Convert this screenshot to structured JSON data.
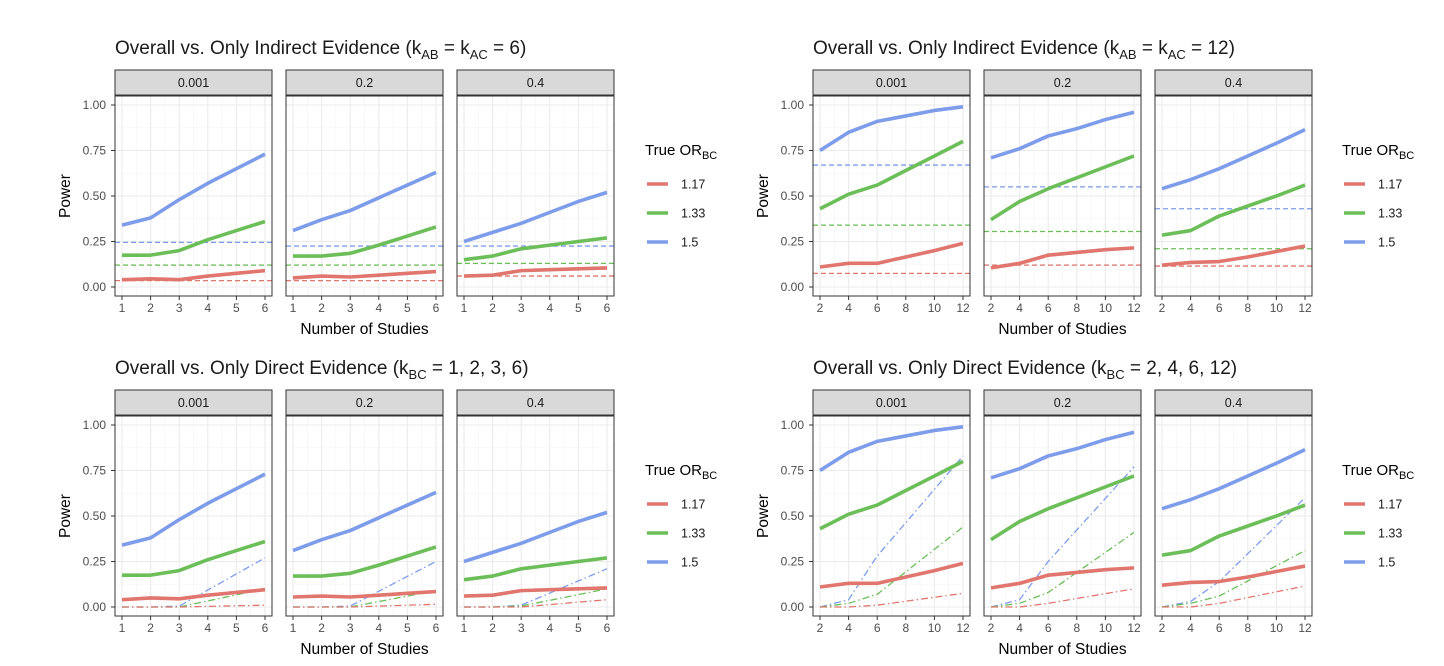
{
  "colors": {
    "s117": "#E0766D",
    "s133": "#6BBE58",
    "s15": "#7D9DEB",
    "strip_bg": "#D9D9D9",
    "grid": "#EBEBEB",
    "panel_border": "#333333"
  },
  "legend": {
    "title_main": "True OR",
    "title_sub": "BC",
    "entries": [
      "1.17",
      "1.33",
      "1.5"
    ]
  },
  "chart_data": [
    {
      "type": "line",
      "title": {
        "pre": "Overall vs. Only Indirect Evidence (k",
        "sub1": "AB",
        "mid": " = k",
        "sub2": "AC",
        "post": " = 6)"
      },
      "xlabel": "Number of Studies",
      "ylabel": "Power",
      "xlim": [
        1,
        6
      ],
      "ylim": [
        0,
        1
      ],
      "xticks": [
        "1",
        "2",
        "3",
        "4",
        "5",
        "6"
      ],
      "yticks": [
        "0.00",
        "0.25",
        "0.50",
        "0.75",
        "1.00"
      ],
      "x": [
        1,
        2,
        3,
        4,
        5,
        6
      ],
      "reference_style": "dashed",
      "facets": [
        {
          "label": "0.001",
          "series": [
            {
              "name": "1.5",
              "values": [
                0.34,
                0.38,
                0.48,
                0.57,
                0.65,
                0.73
              ],
              "reference": 0.245
            },
            {
              "name": "1.33",
              "values": [
                0.175,
                0.175,
                0.2,
                0.26,
                0.31,
                0.36
              ],
              "reference": 0.12
            },
            {
              "name": "1.17",
              "values": [
                0.04,
                0.045,
                0.04,
                0.06,
                0.075,
                0.09
              ],
              "reference": 0.035
            }
          ]
        },
        {
          "label": "0.2",
          "series": [
            {
              "name": "1.5",
              "values": [
                0.31,
                0.37,
                0.42,
                0.49,
                0.56,
                0.63
              ],
              "reference": 0.225
            },
            {
              "name": "1.33",
              "values": [
                0.17,
                0.17,
                0.185,
                0.23,
                0.28,
                0.33
              ],
              "reference": 0.12
            },
            {
              "name": "1.17",
              "values": [
                0.05,
                0.06,
                0.055,
                0.065,
                0.075,
                0.085
              ],
              "reference": 0.035
            }
          ]
        },
        {
          "label": "0.4",
          "series": [
            {
              "name": "1.5",
              "values": [
                0.25,
                0.3,
                0.35,
                0.41,
                0.47,
                0.52
              ],
              "reference": 0.225
            },
            {
              "name": "1.33",
              "values": [
                0.15,
                0.17,
                0.21,
                0.23,
                0.25,
                0.27
              ],
              "reference": 0.13
            },
            {
              "name": "1.17",
              "values": [
                0.06,
                0.065,
                0.09,
                0.095,
                0.1,
                0.105
              ],
              "reference": 0.06
            }
          ]
        }
      ]
    },
    {
      "type": "line",
      "title": {
        "pre": "Overall vs. Only Indirect Evidence (k",
        "sub1": "AB",
        "mid": " = k",
        "sub2": "AC",
        "post": " = 12)"
      },
      "xlabel": "Number of Studies",
      "ylabel": "Power",
      "xlim": [
        2,
        12
      ],
      "ylim": [
        0,
        1
      ],
      "xticks": [
        "2",
        "4",
        "6",
        "8",
        "10",
        "12"
      ],
      "yticks": [
        "0.00",
        "0.25",
        "0.50",
        "0.75",
        "1.00"
      ],
      "x": [
        2,
        4,
        6,
        8,
        10,
        12
      ],
      "reference_style": "dashed",
      "facets": [
        {
          "label": "0.001",
          "series": [
            {
              "name": "1.5",
              "values": [
                0.75,
                0.85,
                0.91,
                0.94,
                0.97,
                0.99
              ],
              "reference": 0.67
            },
            {
              "name": "1.33",
              "values": [
                0.43,
                0.51,
                0.56,
                0.64,
                0.72,
                0.8
              ],
              "reference": 0.34
            },
            {
              "name": "1.17",
              "values": [
                0.11,
                0.13,
                0.13,
                0.165,
                0.2,
                0.24
              ],
              "reference": 0.075
            }
          ]
        },
        {
          "label": "0.2",
          "series": [
            {
              "name": "1.5",
              "values": [
                0.71,
                0.76,
                0.83,
                0.87,
                0.92,
                0.96
              ],
              "reference": 0.55
            },
            {
              "name": "1.33",
              "values": [
                0.37,
                0.47,
                0.54,
                0.6,
                0.66,
                0.72
              ],
              "reference": 0.305
            },
            {
              "name": "1.17",
              "values": [
                0.105,
                0.13,
                0.175,
                0.19,
                0.205,
                0.215
              ],
              "reference": 0.12
            }
          ]
        },
        {
          "label": "0.4",
          "series": [
            {
              "name": "1.5",
              "values": [
                0.54,
                0.59,
                0.65,
                0.72,
                0.79,
                0.865
              ],
              "reference": 0.43
            },
            {
              "name": "1.33",
              "values": [
                0.285,
                0.31,
                0.39,
                0.445,
                0.5,
                0.56
              ],
              "reference": 0.21
            },
            {
              "name": "1.17",
              "values": [
                0.12,
                0.135,
                0.14,
                0.165,
                0.195,
                0.225
              ],
              "reference": 0.115
            }
          ]
        }
      ]
    },
    {
      "type": "line",
      "title": {
        "pre": "Overall vs. Only Direct Evidence (k",
        "sub1": "BC",
        "mid": " = 1, 2, 3, 6)",
        "sub2": "",
        "post": ""
      },
      "xlabel": "Number of Studies",
      "ylabel": "Power",
      "xlim": [
        1,
        6
      ],
      "ylim": [
        0,
        1
      ],
      "xticks": [
        "1",
        "2",
        "3",
        "4",
        "5",
        "6"
      ],
      "yticks": [
        "0.00",
        "0.25",
        "0.50",
        "0.75",
        "1.00"
      ],
      "x": [
        1,
        2,
        3,
        4,
        5,
        6
      ],
      "reference_style": "dotdash",
      "facets": [
        {
          "label": "0.001",
          "series": [
            {
              "name": "1.5",
              "values": [
                0.34,
                0.38,
                0.48,
                0.57,
                0.65,
                0.73
              ],
              "reference_x": [
                1,
                2,
                3,
                6
              ],
              "reference": [
                0.0,
                0.0,
                0.005,
                0.27
              ]
            },
            {
              "name": "1.33",
              "values": [
                0.175,
                0.175,
                0.2,
                0.26,
                0.31,
                0.36
              ],
              "reference_x": [
                1,
                2,
                3,
                6
              ],
              "reference": [
                0.0,
                0.0,
                0.0,
                0.1
              ]
            },
            {
              "name": "1.17",
              "values": [
                0.04,
                0.05,
                0.045,
                0.065,
                0.08,
                0.095
              ],
              "reference_x": [
                1,
                2,
                3,
                6
              ],
              "reference": [
                0.0,
                0.0,
                0.0,
                0.01
              ]
            }
          ]
        },
        {
          "label": "0.2",
          "series": [
            {
              "name": "1.5",
              "values": [
                0.31,
                0.37,
                0.42,
                0.49,
                0.56,
                0.63
              ],
              "reference_x": [
                1,
                2,
                3,
                6
              ],
              "reference": [
                0.0,
                0.0,
                0.005,
                0.25
              ]
            },
            {
              "name": "1.33",
              "values": [
                0.17,
                0.17,
                0.185,
                0.23,
                0.28,
                0.33
              ],
              "reference_x": [
                1,
                2,
                3,
                6
              ],
              "reference": [
                0.0,
                0.0,
                0.0,
                0.09
              ]
            },
            {
              "name": "1.17",
              "values": [
                0.055,
                0.06,
                0.055,
                0.065,
                0.075,
                0.085
              ],
              "reference_x": [
                1,
                2,
                3,
                6
              ],
              "reference": [
                0.0,
                0.0,
                0.0,
                0.015
              ]
            }
          ]
        },
        {
          "label": "0.4",
          "series": [
            {
              "name": "1.5",
              "values": [
                0.25,
                0.3,
                0.35,
                0.41,
                0.47,
                0.52
              ],
              "reference_x": [
                1,
                2,
                3,
                6
              ],
              "reference": [
                0.0,
                0.0,
                0.01,
                0.21
              ]
            },
            {
              "name": "1.33",
              "values": [
                0.15,
                0.17,
                0.21,
                0.23,
                0.25,
                0.27
              ],
              "reference_x": [
                1,
                2,
                3,
                6
              ],
              "reference": [
                0.0,
                0.0,
                0.005,
                0.1
              ]
            },
            {
              "name": "1.17",
              "values": [
                0.06,
                0.065,
                0.09,
                0.095,
                0.1,
                0.105
              ],
              "reference_x": [
                1,
                2,
                3,
                6
              ],
              "reference": [
                0.0,
                0.0,
                0.0,
                0.04
              ]
            }
          ]
        }
      ]
    },
    {
      "type": "line",
      "title": {
        "pre": "Overall vs. Only Direct Evidence (k",
        "sub1": "BC",
        "mid": " = 2, 4, 6, 12)",
        "sub2": "",
        "post": ""
      },
      "xlabel": "Number of Studies",
      "ylabel": "Power",
      "xlim": [
        2,
        12
      ],
      "ylim": [
        0,
        1
      ],
      "xticks": [
        "2",
        "4",
        "6",
        "8",
        "10",
        "12"
      ],
      "yticks": [
        "0.00",
        "0.25",
        "0.50",
        "0.75",
        "1.00"
      ],
      "x": [
        2,
        4,
        6,
        8,
        10,
        12
      ],
      "reference_style": "dotdash",
      "facets": [
        {
          "label": "0.001",
          "series": [
            {
              "name": "1.5",
              "values": [
                0.75,
                0.85,
                0.91,
                0.94,
                0.97,
                0.99
              ],
              "reference_x": [
                2,
                4,
                6,
                12
              ],
              "reference": [
                0.0,
                0.04,
                0.28,
                0.83
              ]
            },
            {
              "name": "1.33",
              "values": [
                0.43,
                0.51,
                0.56,
                0.64,
                0.72,
                0.8
              ],
              "reference_x": [
                2,
                4,
                6,
                12
              ],
              "reference": [
                0.0,
                0.02,
                0.07,
                0.44
              ]
            },
            {
              "name": "1.17",
              "values": [
                0.11,
                0.13,
                0.13,
                0.165,
                0.2,
                0.24
              ],
              "reference_x": [
                2,
                4,
                6,
                12
              ],
              "reference": [
                0.0,
                0.0,
                0.01,
                0.075
              ]
            }
          ]
        },
        {
          "label": "0.2",
          "series": [
            {
              "name": "1.5",
              "values": [
                0.71,
                0.76,
                0.83,
                0.87,
                0.92,
                0.96
              ],
              "reference_x": [
                2,
                4,
                6,
                12
              ],
              "reference": [
                0.0,
                0.04,
                0.25,
                0.77
              ]
            },
            {
              "name": "1.33",
              "values": [
                0.37,
                0.47,
                0.54,
                0.6,
                0.66,
                0.72
              ],
              "reference_x": [
                2,
                4,
                6,
                12
              ],
              "reference": [
                0.0,
                0.02,
                0.08,
                0.41
              ]
            },
            {
              "name": "1.17",
              "values": [
                0.105,
                0.13,
                0.175,
                0.19,
                0.205,
                0.215
              ],
              "reference_x": [
                2,
                4,
                6,
                12
              ],
              "reference": [
                0.0,
                0.0,
                0.02,
                0.1
              ]
            }
          ]
        },
        {
          "label": "0.4",
          "series": [
            {
              "name": "1.5",
              "values": [
                0.54,
                0.59,
                0.65,
                0.72,
                0.79,
                0.865
              ],
              "reference_x": [
                2,
                4,
                6,
                12
              ],
              "reference": [
                0.0,
                0.03,
                0.14,
                0.6
              ]
            },
            {
              "name": "1.33",
              "values": [
                0.285,
                0.31,
                0.39,
                0.445,
                0.5,
                0.56
              ],
              "reference_x": [
                2,
                4,
                6,
                12
              ],
              "reference": [
                0.0,
                0.02,
                0.06,
                0.31
              ]
            },
            {
              "name": "1.17",
              "values": [
                0.12,
                0.135,
                0.14,
                0.165,
                0.195,
                0.225
              ],
              "reference_x": [
                2,
                4,
                6,
                12
              ],
              "reference": [
                0.0,
                0.0,
                0.02,
                0.115
              ]
            }
          ]
        }
      ]
    }
  ]
}
